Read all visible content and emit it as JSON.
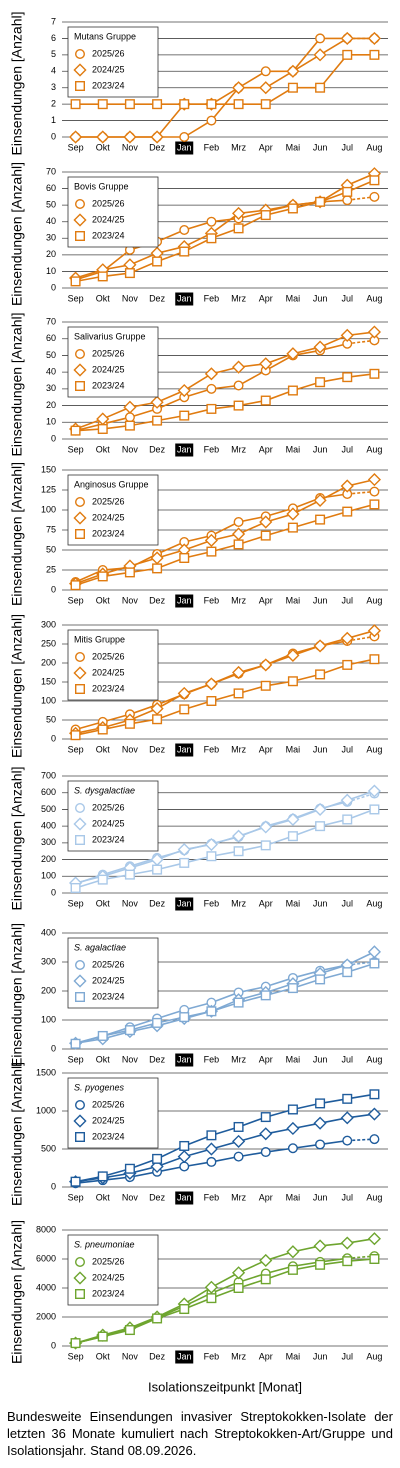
{
  "xlabel": "Isolationszeitpunkt [Monat]",
  "caption": "Bundesweite Einsendungen invasiver Streptokokken-Isolate der letzten 36 Monate kumuliert nach Streptokokken-Art/Gruppe und Isolationsjahr. Stand 08.09.2026.",
  "chart_data": [
    {
      "type": "line",
      "title": "Mutans Gruppe",
      "title_style": "normal",
      "ylabel": "Einsendungen [Anzahl]",
      "categories": [
        "Sep",
        "Okt",
        "Nov",
        "Dez",
        "Jan",
        "Feb",
        "Mrz",
        "Apr",
        "Mai",
        "Jun",
        "Jul",
        "Aug"
      ],
      "highlight_index": 4,
      "ylim": [
        0,
        7
      ],
      "yticks": [
        0,
        1,
        2,
        3,
        4,
        5,
        6,
        7
      ],
      "grid": true,
      "series": [
        {
          "name": "2025/26",
          "color": "#e07b10",
          "marker": "circle",
          "dashed_last_segment": true,
          "values": [
            0,
            0,
            0,
            0,
            0,
            1,
            3,
            4,
            4,
            6,
            6,
            6
          ]
        },
        {
          "name": "2024/25",
          "color": "#e07b10",
          "marker": "diamond",
          "values": [
            0,
            0,
            0,
            0,
            2,
            2,
            3,
            3,
            4,
            5,
            6,
            6
          ]
        },
        {
          "name": "2023/24",
          "color": "#e07b10",
          "marker": "square",
          "values": [
            2,
            2,
            2,
            2,
            2,
            2,
            2,
            2,
            3,
            3,
            5,
            5
          ]
        }
      ]
    },
    {
      "type": "line",
      "title": "Bovis Gruppe",
      "title_style": "normal",
      "ylabel": "Einsendungen [Anzahl]",
      "categories": [
        "Sep",
        "Okt",
        "Nov",
        "Dez",
        "Jan",
        "Feb",
        "Mrz",
        "Apr",
        "Mai",
        "Jun",
        "Jul",
        "Aug"
      ],
      "highlight_index": 4,
      "ylim": [
        0,
        70
      ],
      "yticks": [
        0,
        10,
        20,
        30,
        40,
        50,
        60,
        70
      ],
      "grid": true,
      "series": [
        {
          "name": "2025/26",
          "color": "#e07b10",
          "marker": "circle",
          "dashed_last_segment": true,
          "values": [
            5,
            10,
            23,
            28,
            35,
            40,
            42,
            46,
            50,
            52,
            53,
            55
          ]
        },
        {
          "name": "2024/25",
          "color": "#e07b10",
          "marker": "diamond",
          "values": [
            6,
            11,
            14,
            21,
            25,
            33,
            45,
            47,
            50,
            52,
            62,
            69
          ]
        },
        {
          "name": "2023/24",
          "color": "#e07b10",
          "marker": "square",
          "values": [
            4,
            7,
            9,
            16,
            22,
            30,
            36,
            44,
            48,
            52,
            58,
            65
          ]
        }
      ]
    },
    {
      "type": "line",
      "title": "Salivarius Gruppe",
      "title_style": "normal",
      "ylabel": "Einsendungen [Anzahl]",
      "categories": [
        "Sep",
        "Okt",
        "Nov",
        "Dez",
        "Jan",
        "Feb",
        "Mrz",
        "Apr",
        "Mai",
        "Jun",
        "Jul",
        "Aug"
      ],
      "highlight_index": 4,
      "ylim": [
        0,
        70
      ],
      "yticks": [
        0,
        10,
        20,
        30,
        40,
        50,
        60,
        70
      ],
      "grid": true,
      "series": [
        {
          "name": "2025/26",
          "color": "#e07b10",
          "marker": "circle",
          "dashed_last_segment": true,
          "values": [
            5,
            9,
            13,
            18,
            25,
            30,
            32,
            41,
            50,
            53,
            57,
            59
          ]
        },
        {
          "name": "2024/25",
          "color": "#e07b10",
          "marker": "diamond",
          "values": [
            6,
            12,
            19,
            22,
            29,
            39,
            43,
            45,
            51,
            55,
            62,
            64
          ]
        },
        {
          "name": "2023/24",
          "color": "#e07b10",
          "marker": "square",
          "values": [
            5,
            6,
            8,
            11,
            14,
            18,
            20,
            23,
            29,
            34,
            37,
            39
          ]
        }
      ]
    },
    {
      "type": "line",
      "title": "Anginosus Gruppe",
      "title_style": "normal",
      "ylabel": "Einsendungen [Anzahl]",
      "categories": [
        "Sep",
        "Okt",
        "Nov",
        "Dez",
        "Jan",
        "Feb",
        "Mrz",
        "Apr",
        "Mai",
        "Jun",
        "Jul",
        "Aug"
      ],
      "highlight_index": 4,
      "ylim": [
        0,
        150
      ],
      "yticks": [
        0,
        25,
        50,
        75,
        100,
        125,
        150
      ],
      "grid": true,
      "series": [
        {
          "name": "2025/26",
          "color": "#e07b10",
          "marker": "circle",
          "dashed_last_segment": true,
          "values": [
            10,
            25,
            28,
            45,
            60,
            68,
            85,
            92,
            102,
            115,
            120,
            123
          ]
        },
        {
          "name": "2024/25",
          "color": "#e07b10",
          "marker": "diamond",
          "values": [
            8,
            20,
            30,
            40,
            50,
            62,
            70,
            85,
            95,
            112,
            130,
            138
          ]
        },
        {
          "name": "2023/24",
          "color": "#e07b10",
          "marker": "square",
          "values": [
            6,
            17,
            22,
            27,
            40,
            48,
            57,
            68,
            78,
            88,
            98,
            107
          ]
        }
      ]
    },
    {
      "type": "line",
      "title": "Mitis Gruppe",
      "title_style": "normal",
      "ylabel": "Einsendungen [Anzahl]",
      "categories": [
        "Sep",
        "Okt",
        "Nov",
        "Dez",
        "Jan",
        "Feb",
        "Mrz",
        "Apr",
        "Mai",
        "Jun",
        "Jul",
        "Aug"
      ],
      "highlight_index": 4,
      "ylim": [
        0,
        300
      ],
      "yticks": [
        0,
        50,
        100,
        150,
        200,
        250,
        300
      ],
      "grid": true,
      "series": [
        {
          "name": "2025/26",
          "color": "#e07b10",
          "marker": "circle",
          "dashed_last_segment": true,
          "values": [
            25,
            45,
            65,
            90,
            118,
            145,
            172,
            195,
            225,
            245,
            258,
            270
          ]
        },
        {
          "name": "2024/25",
          "color": "#e07b10",
          "marker": "diamond",
          "values": [
            15,
            30,
            50,
            80,
            120,
            145,
            175,
            195,
            220,
            245,
            265,
            285
          ]
        },
        {
          "name": "2023/24",
          "color": "#e07b10",
          "marker": "square",
          "values": [
            10,
            25,
            40,
            52,
            78,
            100,
            120,
            140,
            152,
            170,
            195,
            210
          ]
        }
      ]
    },
    {
      "type": "line",
      "title": "S. dysgalactiae",
      "title_style": "italic",
      "ylabel": "Einsendungen [Anzahl]",
      "categories": [
        "Sep",
        "Okt",
        "Nov",
        "Dez",
        "Jan",
        "Feb",
        "Mrz",
        "Apr",
        "Mai",
        "Jun",
        "Jul",
        "Aug"
      ],
      "highlight_index": 4,
      "ylim": [
        0,
        700
      ],
      "yticks": [
        0,
        100,
        200,
        300,
        400,
        500,
        600,
        700
      ],
      "grid": true,
      "series": [
        {
          "name": "2025/26",
          "color": "#a9c8e8",
          "marker": "circle",
          "dashed_last_segment": true,
          "values": [
            55,
            110,
            160,
            210,
            255,
            295,
            335,
            400,
            445,
            505,
            545,
            595
          ]
        },
        {
          "name": "2024/25",
          "color": "#a9c8e8",
          "marker": "diamond",
          "values": [
            60,
            100,
            150,
            200,
            260,
            290,
            340,
            395,
            440,
            500,
            555,
            610
          ]
        },
        {
          "name": "2023/24",
          "color": "#a9c8e8",
          "marker": "square",
          "values": [
            30,
            80,
            110,
            140,
            180,
            220,
            250,
            285,
            340,
            400,
            440,
            500
          ]
        }
      ]
    },
    {
      "type": "line",
      "title": "S. agalactiae",
      "title_style": "italic",
      "ylabel": "Einsendungen [Anzahl]",
      "categories": [
        "Sep",
        "Okt",
        "Nov",
        "Dez",
        "Jan",
        "Feb",
        "Mrz",
        "Apr",
        "Mai",
        "Jun",
        "Jul",
        "Aug"
      ],
      "highlight_index": 4,
      "ylim": [
        0,
        400
      ],
      "yticks": [
        0,
        100,
        200,
        300,
        400
      ],
      "grid": true,
      "series": [
        {
          "name": "2025/26",
          "color": "#7fa9d3",
          "marker": "circle",
          "dashed_last_segment": true,
          "values": [
            20,
            45,
            75,
            105,
            135,
            160,
            195,
            215,
            245,
            270,
            290,
            300
          ]
        },
        {
          "name": "2024/25",
          "color": "#7fa9d3",
          "marker": "diamond",
          "values": [
            20,
            35,
            60,
            80,
            105,
            130,
            170,
            195,
            225,
            260,
            290,
            335
          ]
        },
        {
          "name": "2023/24",
          "color": "#7fa9d3",
          "marker": "square",
          "values": [
            18,
            45,
            65,
            90,
            110,
            130,
            160,
            185,
            210,
            240,
            265,
            295
          ]
        }
      ]
    },
    {
      "type": "line",
      "title": "S. pyogenes",
      "title_style": "italic",
      "ylabel": "Einsendungen [Anzahl]",
      "categories": [
        "Sep",
        "Okt",
        "Nov",
        "Dez",
        "Jan",
        "Feb",
        "Mrz",
        "Apr",
        "Mai",
        "Jun",
        "Jul",
        "Aug"
      ],
      "highlight_index": 4,
      "ylim": [
        0,
        1500
      ],
      "yticks": [
        0,
        500,
        1000,
        1500
      ],
      "grid": true,
      "series": [
        {
          "name": "2025/26",
          "color": "#1f5c9c",
          "marker": "circle",
          "dashed_last_segment": true,
          "values": [
            50,
            90,
            130,
            200,
            270,
            330,
            400,
            460,
            510,
            560,
            610,
            630
          ]
        },
        {
          "name": "2024/25",
          "color": "#1f5c9c",
          "marker": "diamond",
          "values": [
            70,
            120,
            180,
            270,
            400,
            500,
            600,
            700,
            770,
            840,
            910,
            960
          ]
        },
        {
          "name": "2023/24",
          "color": "#1f5c9c",
          "marker": "square",
          "values": [
            70,
            140,
            240,
            370,
            540,
            680,
            790,
            920,
            1020,
            1100,
            1160,
            1220
          ]
        }
      ]
    },
    {
      "type": "line",
      "title": "S. pneumoniae",
      "title_style": "italic",
      "ylabel": "Einsendungen [Anzahl]",
      "categories": [
        "Sep",
        "Okt",
        "Nov",
        "Dez",
        "Jan",
        "Feb",
        "Mrz",
        "Apr",
        "Mai",
        "Jun",
        "Jul",
        "Aug"
      ],
      "highlight_index": 4,
      "ylim": [
        0,
        8000
      ],
      "yticks": [
        0,
        2000,
        4000,
        6000,
        8000
      ],
      "grid": true,
      "series": [
        {
          "name": "2025/26",
          "color": "#6ea52f",
          "marker": "circle",
          "dashed_last_segment": true,
          "values": [
            200,
            650,
            1200,
            1950,
            2750,
            3650,
            4400,
            5000,
            5500,
            5800,
            6050,
            6200
          ]
        },
        {
          "name": "2024/25",
          "color": "#6ea52f",
          "marker": "diamond",
          "values": [
            200,
            750,
            1250,
            2000,
            2900,
            4050,
            5050,
            5900,
            6500,
            6900,
            7100,
            7400
          ]
        },
        {
          "name": "2023/24",
          "color": "#6ea52f",
          "marker": "square",
          "values": [
            200,
            650,
            1100,
            1900,
            2550,
            3300,
            4000,
            4600,
            5250,
            5600,
            5850,
            6000
          ]
        }
      ]
    }
  ]
}
